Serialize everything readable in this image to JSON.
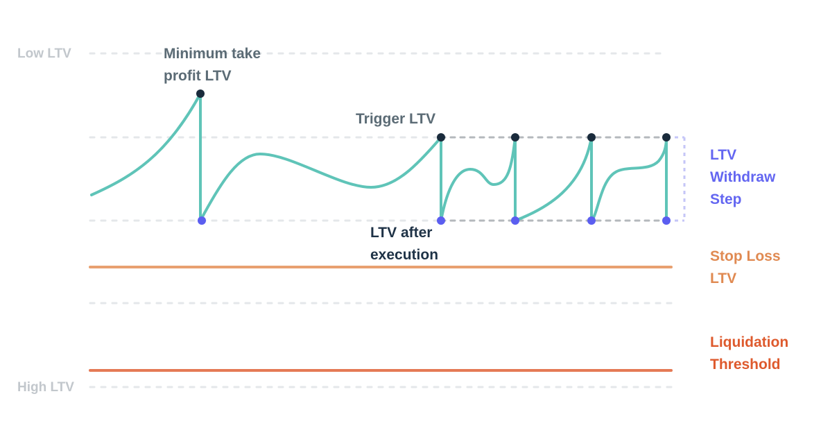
{
  "labels": {
    "low_ltv": "Low LTV",
    "high_ltv": "High LTV",
    "min_take_profit": [
      "Minimum take",
      "profit LTV"
    ],
    "trigger_ltv": "Trigger LTV",
    "ltv_after_execution": [
      "LTV after",
      "execution"
    ],
    "ltv_withdraw_step": [
      "LTV",
      "Withdraw",
      "Step"
    ],
    "stop_loss_ltv": [
      "Stop Loss",
      "LTV"
    ],
    "liquidation_threshold": [
      "Liquidation",
      "Threshold"
    ]
  },
  "colors": {
    "curve": "#5fc4b8",
    "trigger_dot": "#1a2b3c",
    "execution_dot": "#5b5ef0",
    "stop_loss_line": "#e8a070",
    "liquidation_line": "#e57a55",
    "guide_line": "#e4e7ea",
    "band_line": "#b4b8bc",
    "step_bracket": "#c5c6f7"
  }
}
